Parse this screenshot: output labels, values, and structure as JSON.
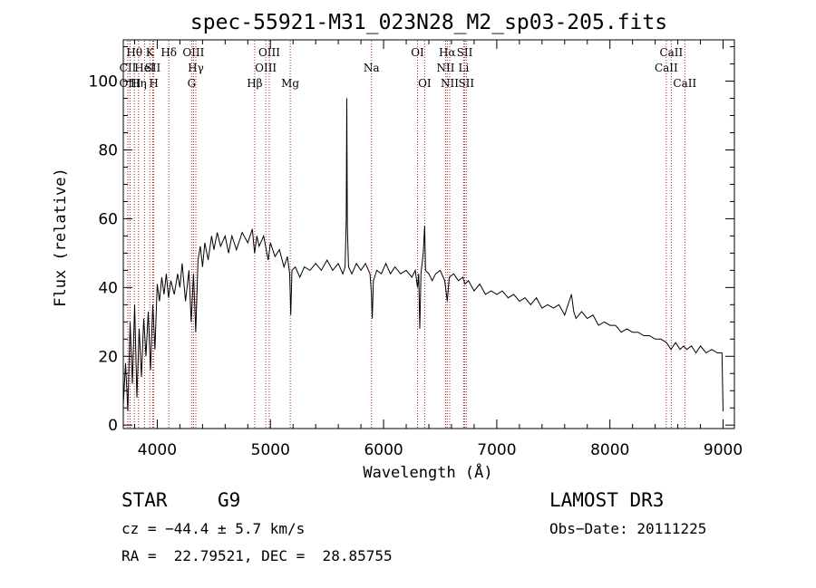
{
  "chart_data": {
    "type": "line",
    "title": "spec-55921-M31_023N28_M2_sp03-205.fits",
    "xlabel": "Wavelength (Å)",
    "ylabel": "Flux (relative)",
    "xlim": [
      3700,
      9100
    ],
    "ylim": [
      -1,
      112
    ],
    "xticks": [
      4000,
      5000,
      6000,
      7000,
      8000,
      9000
    ],
    "yticks": [
      0,
      20,
      40,
      60,
      80,
      100
    ],
    "spectrum": [
      [
        3700,
        6
      ],
      [
        3720,
        18
      ],
      [
        3740,
        4
      ],
      [
        3760,
        30
      ],
      [
        3780,
        12
      ],
      [
        3800,
        35
      ],
      [
        3820,
        8
      ],
      [
        3840,
        28
      ],
      [
        3860,
        14
      ],
      [
        3880,
        31
      ],
      [
        3900,
        20
      ],
      [
        3920,
        33
      ],
      [
        3940,
        16
      ],
      [
        3960,
        35
      ],
      [
        3980,
        22
      ],
      [
        4000,
        41
      ],
      [
        4020,
        36
      ],
      [
        4040,
        43
      ],
      [
        4060,
        38
      ],
      [
        4080,
        44
      ],
      [
        4100,
        37
      ],
      [
        4120,
        42
      ],
      [
        4150,
        38
      ],
      [
        4180,
        44
      ],
      [
        4200,
        40
      ],
      [
        4220,
        47
      ],
      [
        4250,
        36
      ],
      [
        4280,
        45
      ],
      [
        4300,
        30
      ],
      [
        4320,
        44
      ],
      [
        4340,
        27
      ],
      [
        4360,
        48
      ],
      [
        4380,
        52
      ],
      [
        4400,
        46
      ],
      [
        4420,
        53
      ],
      [
        4450,
        48
      ],
      [
        4480,
        55
      ],
      [
        4500,
        51
      ],
      [
        4530,
        56
      ],
      [
        4560,
        52
      ],
      [
        4600,
        55
      ],
      [
        4630,
        50
      ],
      [
        4660,
        55
      ],
      [
        4700,
        51
      ],
      [
        4750,
        56
      ],
      [
        4800,
        53
      ],
      [
        4840,
        57
      ],
      [
        4860,
        50
      ],
      [
        4880,
        55
      ],
      [
        4900,
        52
      ],
      [
        4940,
        55
      ],
      [
        4980,
        48
      ],
      [
        5000,
        53
      ],
      [
        5040,
        49
      ],
      [
        5080,
        51
      ],
      [
        5120,
        46
      ],
      [
        5150,
        49
      ],
      [
        5170,
        44
      ],
      [
        5180,
        32
      ],
      [
        5190,
        45
      ],
      [
        5220,
        46
      ],
      [
        5260,
        43
      ],
      [
        5300,
        46
      ],
      [
        5350,
        45
      ],
      [
        5400,
        47
      ],
      [
        5450,
        45
      ],
      [
        5500,
        48
      ],
      [
        5550,
        45
      ],
      [
        5600,
        47
      ],
      [
        5640,
        44
      ],
      [
        5660,
        46
      ],
      [
        5670,
        60
      ],
      [
        5675,
        95
      ],
      [
        5680,
        58
      ],
      [
        5690,
        46
      ],
      [
        5720,
        44
      ],
      [
        5760,
        47
      ],
      [
        5800,
        45
      ],
      [
        5840,
        47
      ],
      [
        5880,
        44
      ],
      [
        5893,
        38
      ],
      [
        5900,
        31
      ],
      [
        5910,
        42
      ],
      [
        5940,
        45
      ],
      [
        5980,
        44
      ],
      [
        6020,
        47
      ],
      [
        6060,
        44
      ],
      [
        6100,
        46
      ],
      [
        6150,
        44
      ],
      [
        6200,
        45
      ],
      [
        6250,
        43
      ],
      [
        6280,
        45
      ],
      [
        6300,
        40
      ],
      [
        6310,
        44
      ],
      [
        6320,
        28
      ],
      [
        6330,
        44
      ],
      [
        6350,
        50
      ],
      [
        6363,
        58
      ],
      [
        6370,
        45
      ],
      [
        6400,
        44
      ],
      [
        6430,
        42
      ],
      [
        6460,
        44
      ],
      [
        6500,
        45
      ],
      [
        6540,
        42
      ],
      [
        6563,
        36
      ],
      [
        6580,
        43
      ],
      [
        6620,
        44
      ],
      [
        6660,
        42
      ],
      [
        6700,
        43
      ],
      [
        6720,
        41
      ],
      [
        6750,
        42
      ],
      [
        6800,
        39
      ],
      [
        6850,
        41
      ],
      [
        6900,
        38
      ],
      [
        6950,
        39
      ],
      [
        7000,
        38
      ],
      [
        7050,
        39
      ],
      [
        7100,
        37
      ],
      [
        7150,
        38
      ],
      [
        7200,
        36
      ],
      [
        7250,
        37
      ],
      [
        7300,
        35
      ],
      [
        7350,
        37
      ],
      [
        7400,
        34
      ],
      [
        7450,
        35
      ],
      [
        7500,
        34
      ],
      [
        7550,
        35
      ],
      [
        7600,
        32
      ],
      [
        7640,
        36
      ],
      [
        7660,
        38
      ],
      [
        7680,
        33
      ],
      [
        7700,
        31
      ],
      [
        7750,
        33
      ],
      [
        7800,
        31
      ],
      [
        7850,
        32
      ],
      [
        7900,
        29
      ],
      [
        7950,
        30
      ],
      [
        8000,
        29
      ],
      [
        8050,
        29
      ],
      [
        8100,
        27
      ],
      [
        8150,
        28
      ],
      [
        8200,
        27
      ],
      [
        8250,
        27
      ],
      [
        8300,
        26
      ],
      [
        8350,
        26
      ],
      [
        8400,
        25
      ],
      [
        8450,
        25
      ],
      [
        8500,
        24
      ],
      [
        8540,
        22
      ],
      [
        8580,
        24
      ],
      [
        8620,
        22
      ],
      [
        8650,
        23
      ],
      [
        8680,
        22
      ],
      [
        8720,
        23
      ],
      [
        8760,
        21
      ],
      [
        8800,
        23
      ],
      [
        8850,
        21
      ],
      [
        8900,
        22
      ],
      [
        8950,
        21
      ],
      [
        8990,
        21
      ],
      [
        9000,
        4
      ]
    ],
    "spectral_lines": [
      {
        "label": "Hθ",
        "x": 3798,
        "row": 0
      },
      {
        "label": "CII",
        "x": 3740,
        "row": 1
      },
      {
        "label": "OIII",
        "x": 3760,
        "row": 2
      },
      {
        "label": "Hη",
        "x": 3835,
        "row": 2
      },
      {
        "label": "HeI",
        "x": 3888,
        "row": 1
      },
      {
        "label": "K",
        "x": 3934,
        "row": 0
      },
      {
        "label": "SII",
        "x": 3960,
        "row": 1
      },
      {
        "label": "H",
        "x": 3969,
        "row": 2
      },
      {
        "label": "Hδ",
        "x": 4102,
        "row": 0
      },
      {
        "label": "OIII",
        "x": 4320,
        "row": 0
      },
      {
        "label": "Hγ",
        "x": 4341,
        "row": 1
      },
      {
        "label": "G",
        "x": 4304,
        "row": 2
      },
      {
        "label": "OIII",
        "x": 4990,
        "row": 0
      },
      {
        "label": "OIII",
        "x": 4959,
        "row": 1
      },
      {
        "label": "Hβ",
        "x": 4861,
        "row": 2
      },
      {
        "label": "Mg",
        "x": 5175,
        "row": 2
      },
      {
        "label": "Na",
        "x": 5893,
        "row": 1
      },
      {
        "label": "OI",
        "x": 6300,
        "row": 0
      },
      {
        "label": "OI",
        "x": 6363,
        "row": 2
      },
      {
        "label": "Hα",
        "x": 6563,
        "row": 0
      },
      {
        "label": "SII",
        "x": 6717,
        "row": 0
      },
      {
        "label": "NII",
        "x": 6548,
        "row": 1
      },
      {
        "label": "Li",
        "x": 6708,
        "row": 1
      },
      {
        "label": "NII",
        "x": 6584,
        "row": 2
      },
      {
        "label": "SII",
        "x": 6731,
        "row": 2
      },
      {
        "label": "CaII",
        "x": 8542,
        "row": 0
      },
      {
        "label": "CaII",
        "x": 8498,
        "row": 1
      },
      {
        "label": "CaII",
        "x": 8662,
        "row": 2
      }
    ]
  },
  "info": {
    "class": "STAR",
    "subclass": "G9",
    "survey": "LAMOST DR3",
    "redshift": "cz = −44.4 ± 5.7 km/s",
    "obs_date": "Obs−Date: 20111225",
    "coords": "RA =  22.79521, DEC =  28.85755"
  },
  "colors": {
    "line": "#000000",
    "marker": "#b22222"
  }
}
